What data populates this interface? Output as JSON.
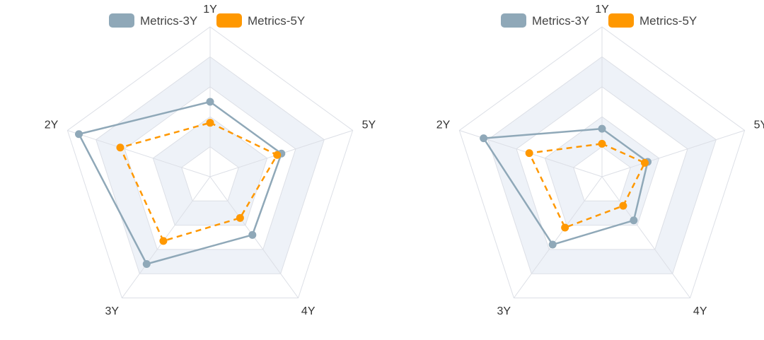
{
  "colors": {
    "series_3y": "#8fa8b8",
    "series_5y": "#ff9800",
    "grid": "#dcdfe6",
    "band": "#eef2f8"
  },
  "chart_data": [
    {
      "type": "radar",
      "legend": [
        "Metrics-3Y",
        "Metrics-5Y"
      ],
      "indicators": [
        "1Y",
        "5Y",
        "4Y",
        "3Y",
        "2Y"
      ],
      "max": 1,
      "series": [
        {
          "name": "Metrics-3Y",
          "values": [
            0.5,
            0.5,
            0.48,
            0.72,
            0.92
          ],
          "style": "solid"
        },
        {
          "name": "Metrics-5Y",
          "values": [
            0.36,
            0.47,
            0.34,
            0.53,
            0.63
          ],
          "style": "dashed"
        }
      ]
    },
    {
      "type": "radar",
      "legend": [
        "Metrics-3Y",
        "Metrics-5Y"
      ],
      "indicators": [
        "1Y",
        "5Y",
        "4Y",
        "3Y",
        "2Y"
      ],
      "max": 1,
      "series": [
        {
          "name": "Metrics-3Y",
          "values": [
            0.32,
            0.32,
            0.36,
            0.56,
            0.83
          ],
          "style": "solid"
        },
        {
          "name": "Metrics-5Y",
          "values": [
            0.22,
            0.3,
            0.24,
            0.42,
            0.51
          ],
          "style": "dashed"
        }
      ]
    }
  ]
}
